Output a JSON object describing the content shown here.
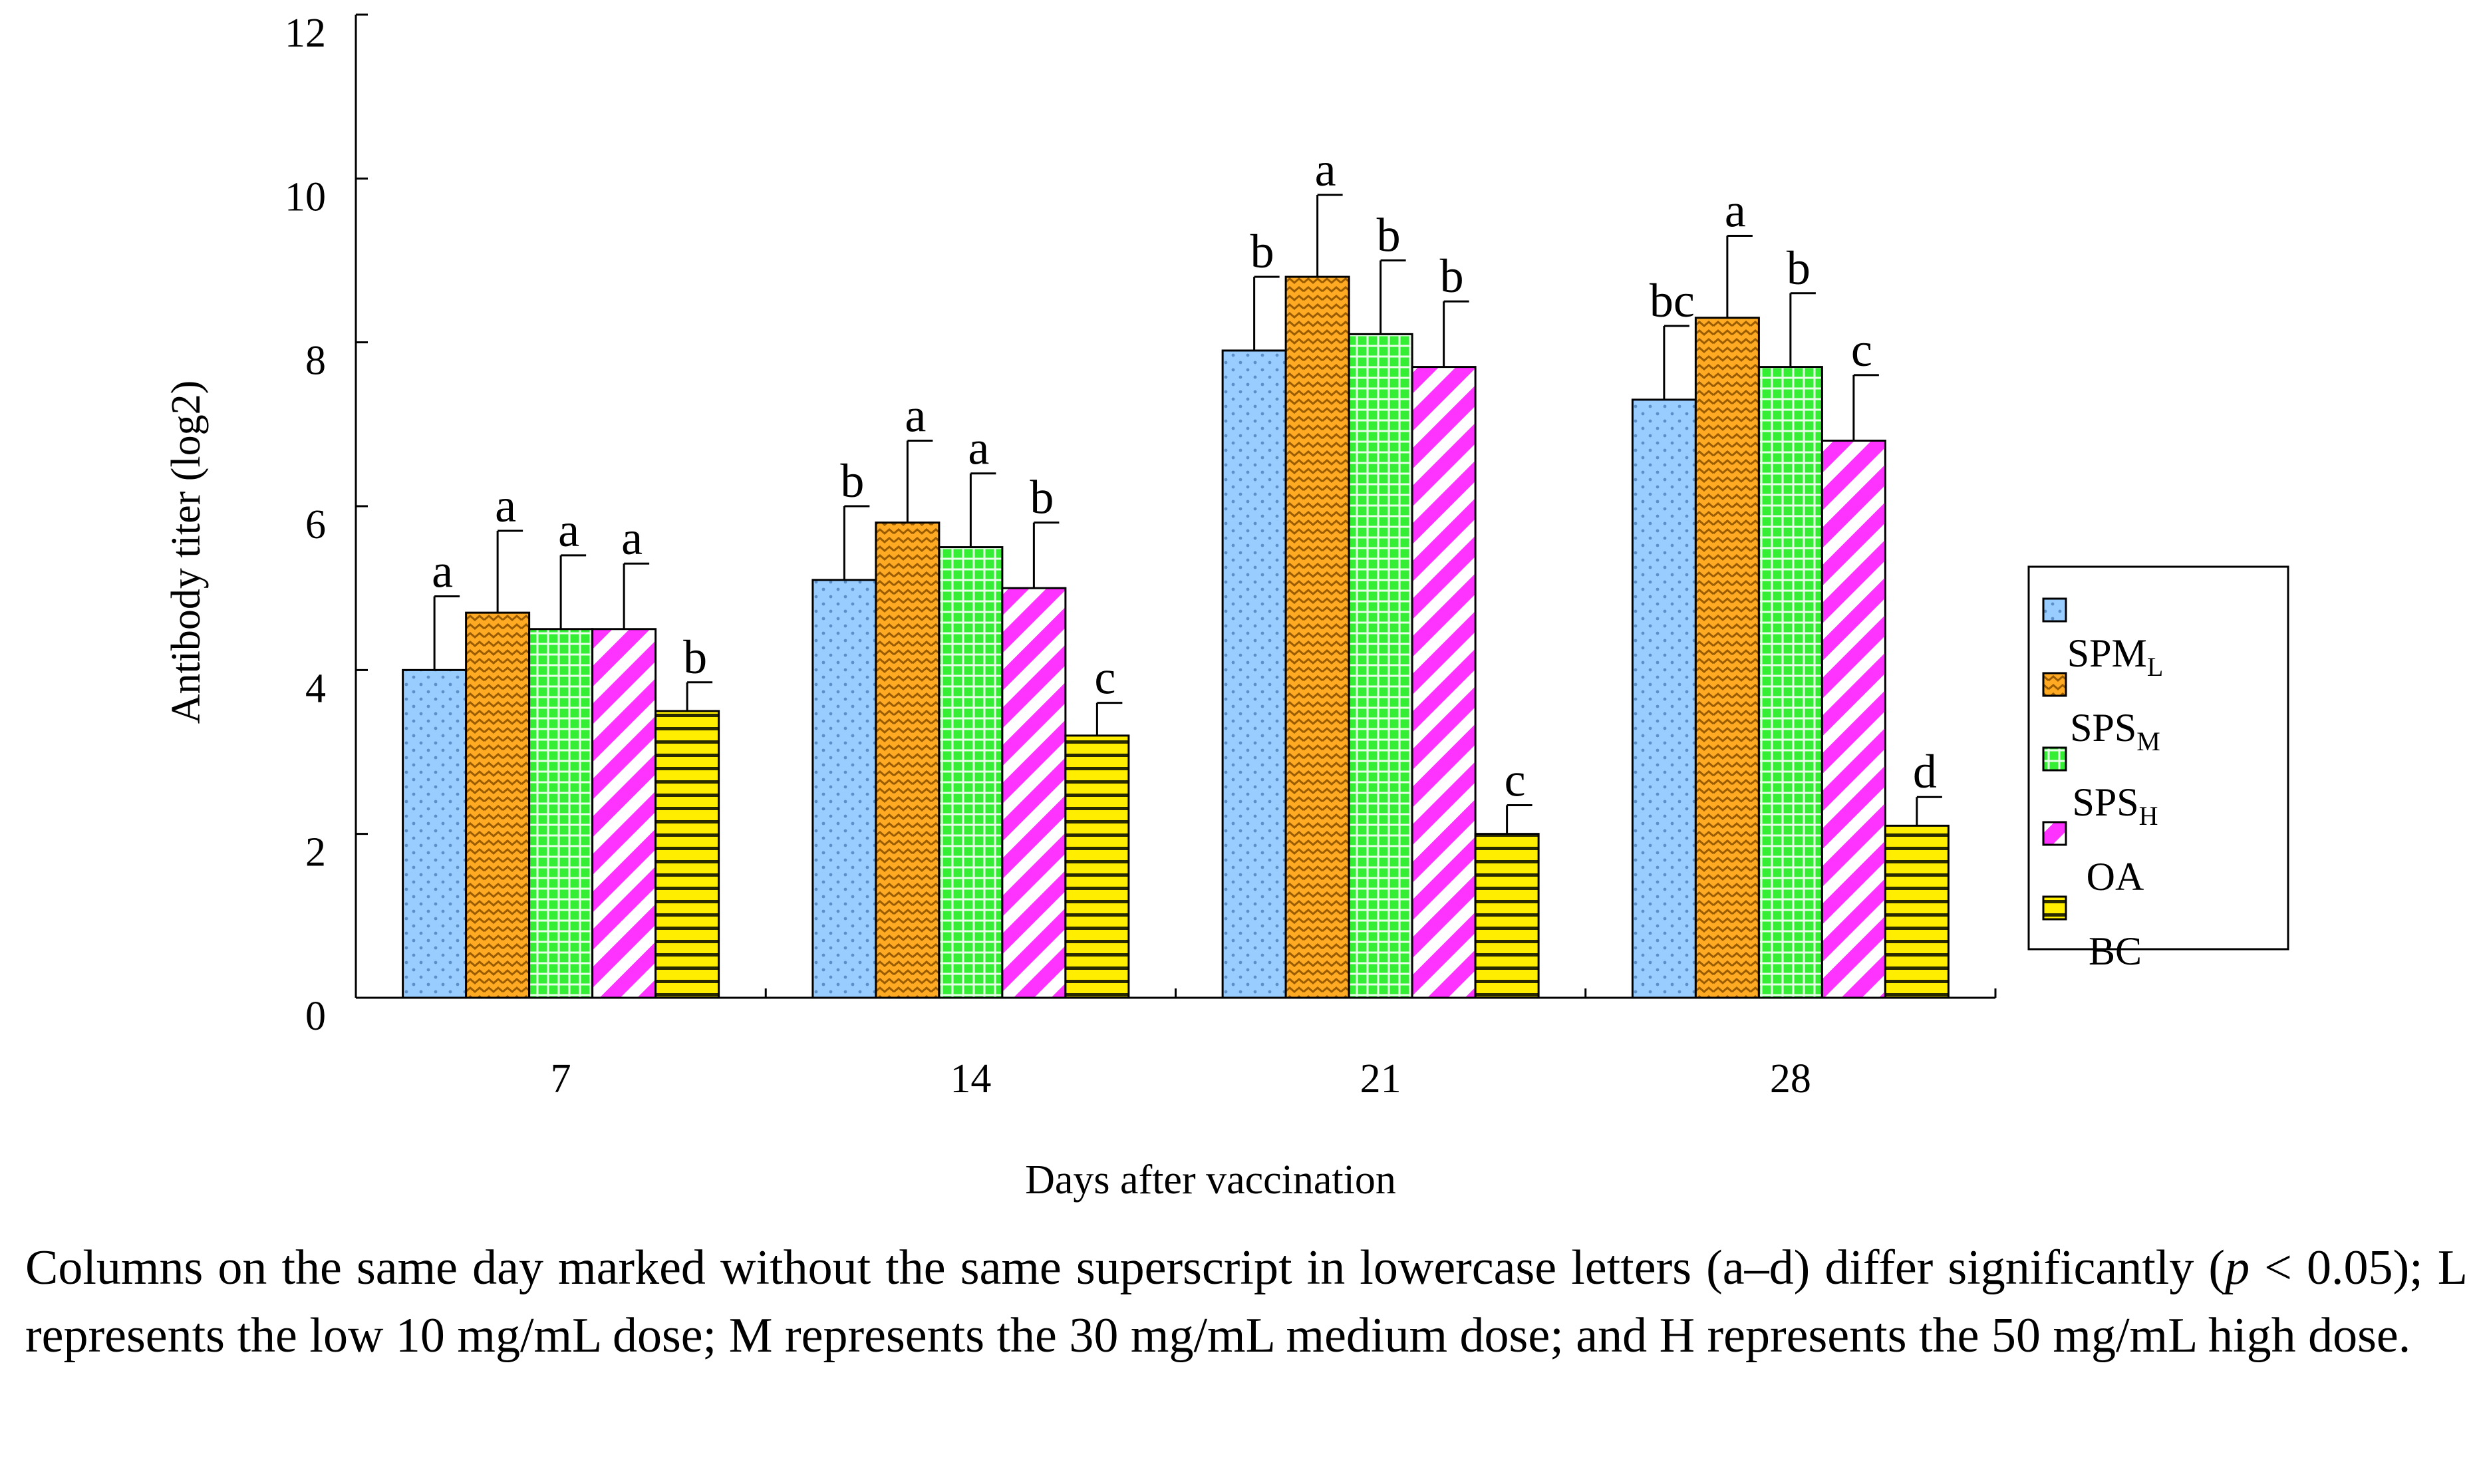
{
  "chart_data": {
    "type": "bar",
    "title": "",
    "xlabel": "Days after vaccination",
    "ylabel": "Antibody titer (log2)",
    "ylim": [
      0,
      12
    ],
    "yticks": [
      "0",
      "2",
      "4",
      "6",
      "8",
      "10",
      "12"
    ],
    "categories": [
      "7",
      "14",
      "21",
      "28"
    ],
    "legend_position": "right",
    "grid": false,
    "series": [
      {
        "name": "SPM",
        "subscript": "L",
        "color": "#99ccff",
        "pattern": "dots",
        "values": [
          4.0,
          5.1,
          7.9,
          7.3
        ],
        "errors": [
          0.9,
          0.9,
          0.9,
          0.9
        ],
        "letters": [
          "a",
          "b",
          "b",
          "bc"
        ]
      },
      {
        "name": "SPS",
        "subscript": "M",
        "color": "#ffaa22",
        "pattern": "zigzag",
        "values": [
          4.7,
          5.8,
          8.8,
          8.3
        ],
        "errors": [
          1.0,
          1.0,
          1.0,
          1.0
        ],
        "letters": [
          "a",
          "a",
          "a",
          "a"
        ]
      },
      {
        "name": "SPS",
        "subscript": "H",
        "color": "#33ee33",
        "pattern": "grid",
        "values": [
          4.5,
          5.5,
          8.1,
          7.7
        ],
        "errors": [
          0.9,
          0.9,
          0.9,
          0.9
        ],
        "letters": [
          "a",
          "a",
          "b",
          "b"
        ]
      },
      {
        "name": "OA",
        "subscript": "",
        "color": "#ff33ff",
        "pattern": "diagonal",
        "values": [
          4.5,
          5.0,
          7.7,
          6.8
        ],
        "errors": [
          0.8,
          0.8,
          0.8,
          0.8
        ],
        "letters": [
          "a",
          "b",
          "b",
          "c"
        ]
      },
      {
        "name": "BC",
        "subscript": "",
        "color": "#ffee00",
        "pattern": "horizontal",
        "values": [
          3.5,
          3.2,
          2.0,
          2.1
        ],
        "errors": [
          0.35,
          0.4,
          0.35,
          0.35
        ],
        "letters": [
          "b",
          "c",
          "c",
          "d"
        ]
      }
    ]
  },
  "caption": {
    "part1": "Columns on the same day marked without the same superscript in lowercase letters (a–d) differ significantly (",
    "p": "p",
    "part2": " < 0.05); L represents the low 10 mg/mL dose; M represents the 30 mg/mL medium dose; and H represents the 50 mg/mL high dose."
  }
}
